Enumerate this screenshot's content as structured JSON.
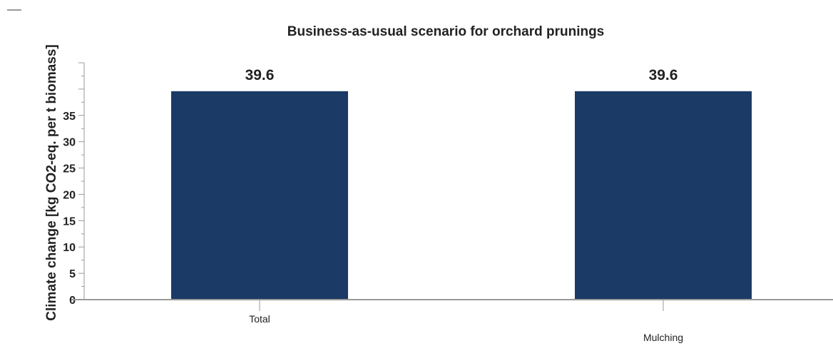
{
  "chart_data": {
    "type": "bar",
    "title": "Business-as-usual scenario for orchard prunings",
    "xlabel": "",
    "ylabel": "Climate change [kg CO2-eq. per t biomass]",
    "categories": [
      "Total",
      "Mulching"
    ],
    "values": [
      39.6,
      39.6
    ],
    "data_labels": [
      "39.6",
      "39.6"
    ],
    "yticks": [
      "0",
      "5",
      "10",
      "15",
      "20",
      "25",
      "30",
      "35"
    ],
    "ylim": [
      0,
      45
    ],
    "grid": false,
    "legend": "none",
    "bar_color": "#1b3a66"
  }
}
